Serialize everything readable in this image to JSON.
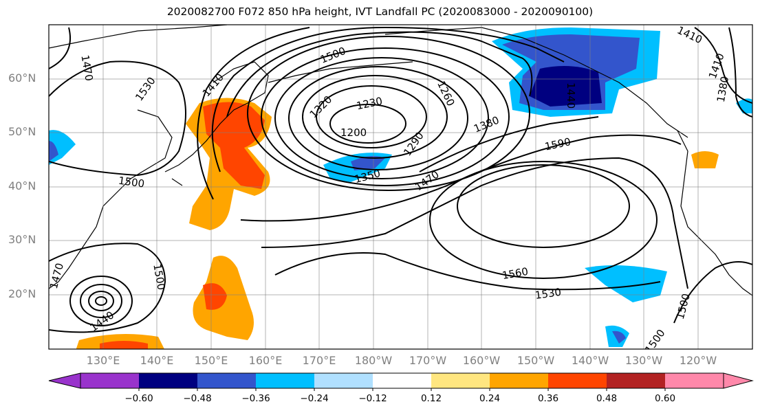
{
  "title": "2020082700 F072 850 hPa height, IVT Landfall PC (2020083000 - 2020090100)",
  "lat_labels": [
    "60°N",
    "50°N",
    "40°N",
    "30°N",
    "20°N"
  ],
  "lon_labels": [
    "130°E",
    "140°E",
    "150°E",
    "160°E",
    "170°E",
    "180°W",
    "170°W",
    "160°W",
    "150°W",
    "140°W",
    "130°W",
    "120°W"
  ],
  "contour_labels": [
    "1470",
    "1530",
    "1500",
    "1410",
    "1230",
    "1260",
    "1320",
    "1200",
    "1290",
    "1380",
    "1440",
    "1590",
    "1350",
    "1470",
    "1500",
    "1500",
    "1440",
    "1560",
    "1530",
    "1500",
    "1500",
    "1410",
    "1380",
    "1410",
    "1470"
  ],
  "colorbar": {
    "ticks": [
      "−0.60",
      "−0.48",
      "−0.36",
      "−0.24",
      "−0.12",
      "0.12",
      "0.24",
      "0.36",
      "0.48",
      "0.60"
    ],
    "colors": [
      "#9933cc",
      "#000080",
      "#3355cc",
      "#00bfff",
      "#b0e0ff",
      "#ffffff",
      "#ffe680",
      "#ffa500",
      "#ff4500",
      "#b22222",
      "#ff88aa"
    ]
  },
  "colors": {
    "positive_strong": "#ff4500",
    "positive": "#ffa500",
    "negative_strong": "#000080",
    "negative": "#3355cc",
    "negative_light": "#00bfff",
    "contour": "#000000",
    "grid": "#808080"
  }
}
